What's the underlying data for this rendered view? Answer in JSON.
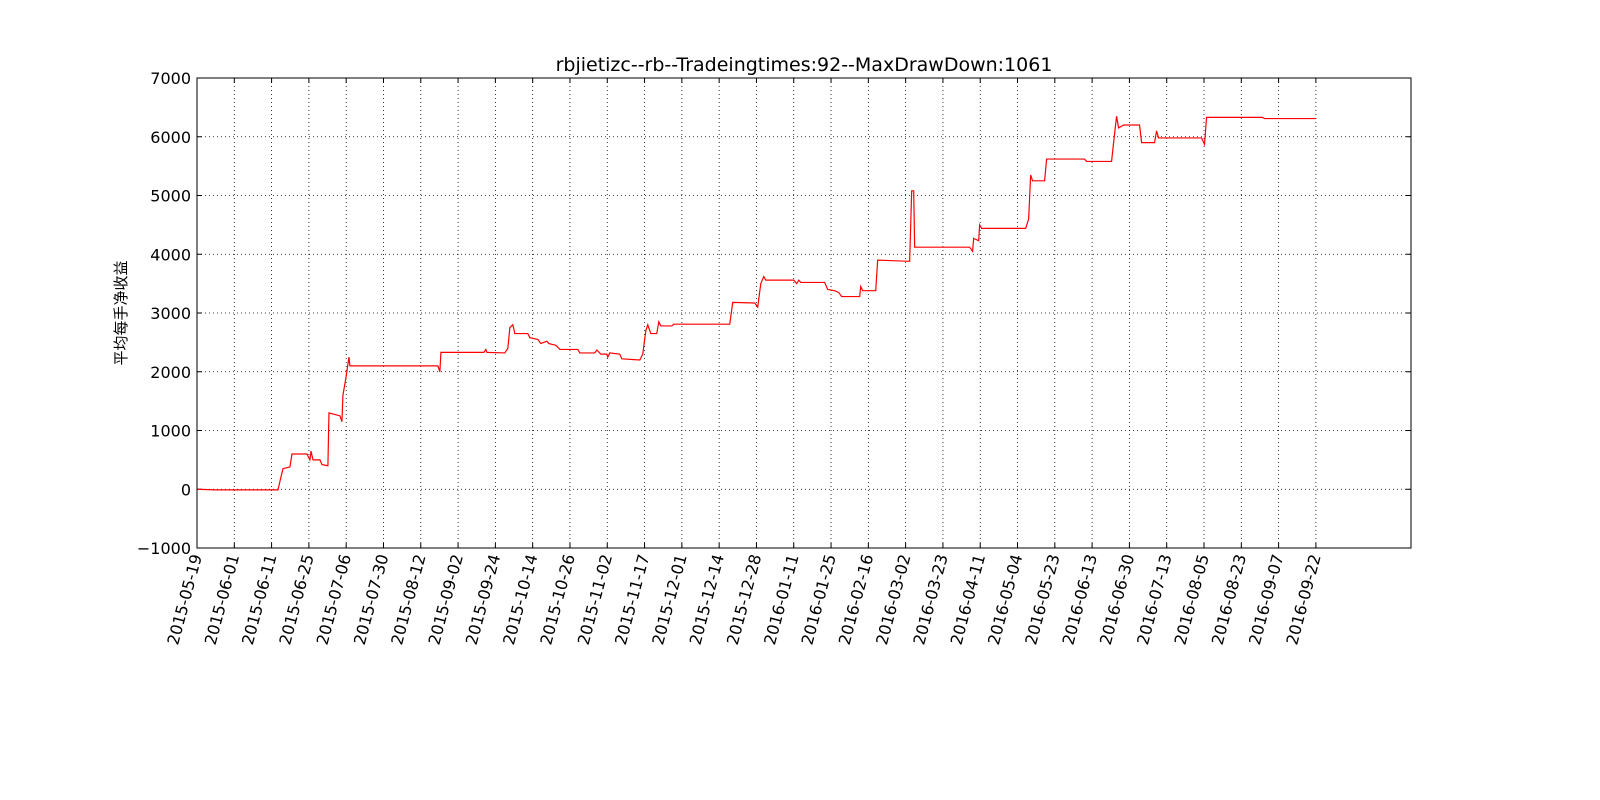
{
  "chart_data": {
    "type": "line",
    "title": "rbjietizc--rb--Tradeingtimes:92--MaxDrawDown:1061",
    "ylabel": "平均每手净收益",
    "x": [
      0,
      241,
      1085,
      1152,
      1246,
      1273,
      1474,
      1514,
      1528,
      1555,
      1648,
      1675,
      1755,
      1769,
      1916,
      1943,
      1956,
      1997,
      2037,
      2050,
      3229,
      3256,
      3270,
      3846,
      3873,
      3886,
      4127,
      4167,
      4194,
      4234,
      4261,
      4435,
      4462,
      4569,
      4610,
      4690,
      4717,
      4811,
      4864,
      5105,
      5132,
      5333,
      5360,
      5414,
      5494,
      5507,
      5534,
      5668,
      5695,
      5936,
      5976,
      6017,
      6043,
      6084,
      6164,
      6191,
      6218,
      6365,
      6392,
      7142,
      7182,
      7477,
      7517,
      7558,
      7598,
      7625,
      8000,
      8040,
      8067,
      8094,
      8415,
      8455,
      8549,
      8603,
      8643,
      8884,
      8898,
      8924,
      9099,
      9125,
      9554,
      9581,
      9608,
      9621,
      10358,
      10398,
      10412,
      10479,
      10492,
      10519,
      11109,
      11149,
      11176,
      11202,
      11363,
      11390,
      11899,
      11926,
      12261,
      12288,
      12328,
      12355,
      12422,
      12636,
      12663,
      12837,
      12864,
      12891,
      13467,
      13507,
      13534,
      14284,
      14311,
      15000
    ],
    "series": [
      {
        "color": "#ff0000",
        "values": [
          0,
          -10,
          -10,
          350,
          380,
          600,
          600,
          500,
          650,
          500,
          500,
          420,
          400,
          1300,
          1250,
          1150,
          1600,
          1900,
          2250,
          2100,
          2100,
          2000,
          2330,
          2330,
          2380,
          2330,
          2320,
          2400,
          2750,
          2800,
          2650,
          2650,
          2580,
          2550,
          2480,
          2520,
          2480,
          2450,
          2380,
          2380,
          2320,
          2320,
          2370,
          2300,
          2300,
          2250,
          2320,
          2300,
          2220,
          2200,
          2300,
          2700,
          2800,
          2650,
          2650,
          2850,
          2780,
          2780,
          2810,
          2810,
          3180,
          3170,
          3100,
          3500,
          3620,
          3560,
          3560,
          3500,
          3560,
          3520,
          3520,
          3400,
          3380,
          3350,
          3280,
          3280,
          3450,
          3380,
          3380,
          3900,
          3880,
          5080,
          5080,
          4120,
          4120,
          4050,
          4270,
          4230,
          4500,
          4440,
          4440,
          4600,
          5350,
          5250,
          5250,
          5620,
          5620,
          5580,
          5580,
          5900,
          6350,
          6150,
          6200,
          6200,
          5900,
          5900,
          6100,
          5980,
          5980,
          5870,
          6330,
          6330,
          6310,
          6310
        ]
      }
    ],
    "xlim": [
      0,
      16275
    ],
    "xticks": [
      {
        "value": 0,
        "label": "2015-05-19"
      },
      {
        "value": 500,
        "label": "2015-06-01"
      },
      {
        "value": 1000,
        "label": "2015-06-11"
      },
      {
        "value": 1500,
        "label": "2015-06-25"
      },
      {
        "value": 2000,
        "label": "2015-07-06"
      },
      {
        "value": 2500,
        "label": "2015-07-30"
      },
      {
        "value": 3000,
        "label": "2015-08-12"
      },
      {
        "value": 3500,
        "label": "2015-09-02"
      },
      {
        "value": 4000,
        "label": "2015-09-24"
      },
      {
        "value": 4500,
        "label": "2015-10-14"
      },
      {
        "value": 5000,
        "label": "2015-10-26"
      },
      {
        "value": 5500,
        "label": "2015-11-02"
      },
      {
        "value": 6000,
        "label": "2015-11-17"
      },
      {
        "value": 6500,
        "label": "2015-12-01"
      },
      {
        "value": 7000,
        "label": "2015-12-14"
      },
      {
        "value": 7500,
        "label": "2015-12-28"
      },
      {
        "value": 8000,
        "label": "2016-01-11"
      },
      {
        "value": 8500,
        "label": "2016-01-25"
      },
      {
        "value": 9000,
        "label": "2016-02-16"
      },
      {
        "value": 9500,
        "label": "2016-03-02"
      },
      {
        "value": 10000,
        "label": "2016-03-23"
      },
      {
        "value": 10500,
        "label": "2016-04-11"
      },
      {
        "value": 11000,
        "label": "2016-05-04"
      },
      {
        "value": 11500,
        "label": "2016-05-23"
      },
      {
        "value": 12000,
        "label": "2016-06-13"
      },
      {
        "value": 12500,
        "label": "2016-06-30"
      },
      {
        "value": 13000,
        "label": "2016-07-13"
      },
      {
        "value": 13500,
        "label": "2016-08-05"
      },
      {
        "value": 14000,
        "label": "2016-08-23"
      },
      {
        "value": 14500,
        "label": "2016-09-07"
      },
      {
        "value": 15000,
        "label": "2016-09-22"
      }
    ],
    "ylim": [
      -1000,
      7000
    ],
    "yticks": [
      {
        "value": -1000,
        "label": "−1000"
      },
      0,
      1000,
      2000,
      3000,
      4000,
      5000,
      6000,
      7000
    ],
    "grid": true
  }
}
